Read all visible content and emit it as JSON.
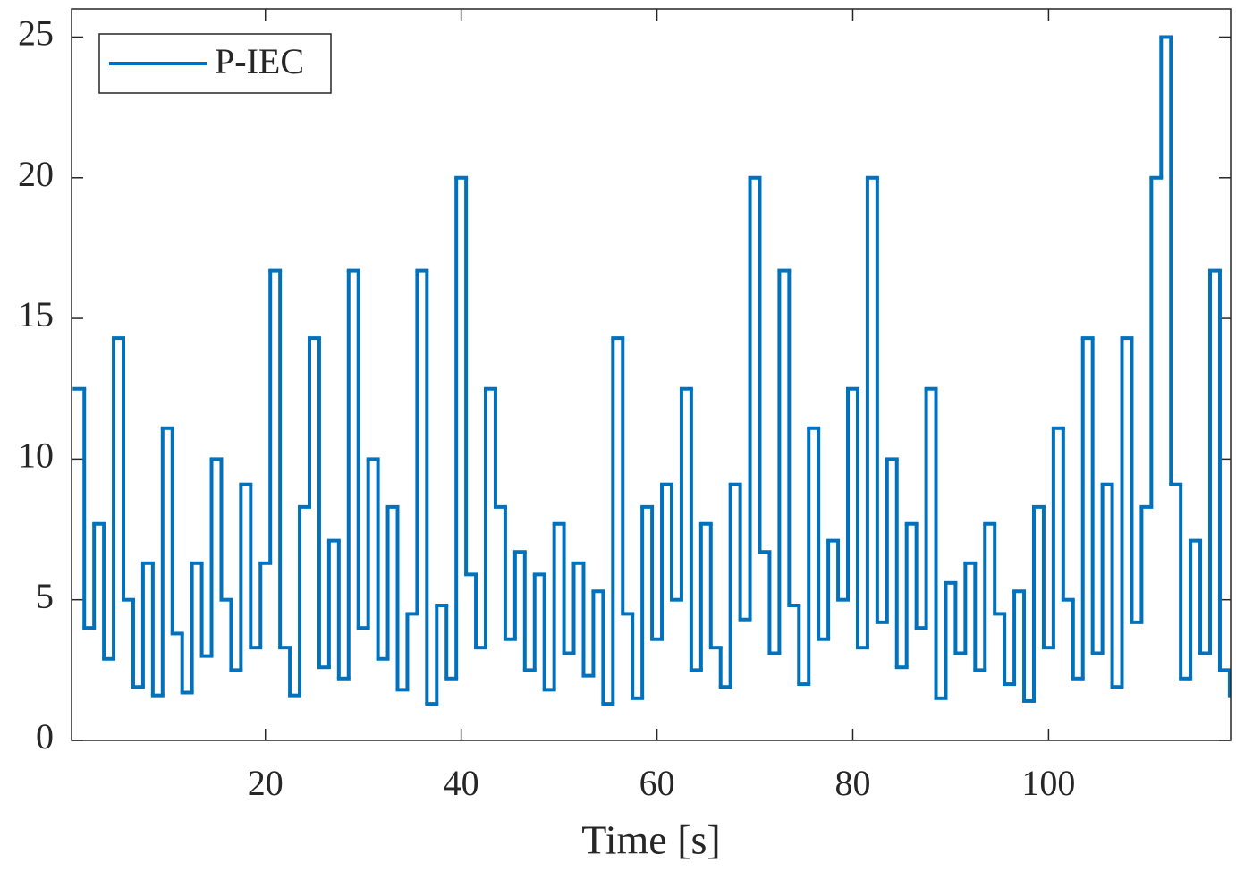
{
  "chart_data": {
    "type": "step",
    "xlabel": "Time [s]",
    "xlim": [
      0.2,
      118.6
    ],
    "ylim": [
      0,
      26
    ],
    "xticks": [
      20,
      40,
      60,
      80,
      100
    ],
    "yticks": [
      0,
      5,
      10,
      15,
      20,
      25
    ],
    "legend": "upper left",
    "box": true,
    "x": [
      0.5,
      1.5,
      2.5,
      3.5,
      4.5,
      5.5,
      6.5,
      7.5,
      8.5,
      9.5,
      10.5,
      11.5,
      12.5,
      13.5,
      14.5,
      15.5,
      16.5,
      17.5,
      18.5,
      19.5,
      20.5,
      21.5,
      22.5,
      23.5,
      24.5,
      25.5,
      26.5,
      27.5,
      28.5,
      29.5,
      30.5,
      31.5,
      32.5,
      33.5,
      34.5,
      35.5,
      36.5,
      37.5,
      38.5,
      39.5,
      40.5,
      41.5,
      42.5,
      43.5,
      44.5,
      45.5,
      46.5,
      47.5,
      48.5,
      49.5,
      50.5,
      51.5,
      52.5,
      53.5,
      54.5,
      55.5,
      56.5,
      57.5,
      58.5,
      59.5,
      60.5,
      61.5,
      62.5,
      63.5,
      64.5,
      65.5,
      66.5,
      67.5,
      68.5,
      69.5,
      70.5,
      71.5,
      72.5,
      73.5,
      74.5,
      75.5,
      76.5,
      77.5,
      78.5,
      79.5,
      80.5,
      81.5,
      82.5,
      83.5,
      84.5,
      85.5,
      86.5,
      87.5,
      88.5,
      89.5,
      90.5,
      91.5,
      92.5,
      93.5,
      94.5,
      95.5,
      96.5,
      97.5,
      98.5,
      99.5,
      100.5,
      101.5,
      102.5,
      103.5,
      104.5,
      105.5,
      106.5,
      107.5,
      108.5,
      109.5,
      110.5,
      111.5,
      112.5,
      113.5,
      114.5,
      115.5,
      116.5,
      117.5,
      118.5
    ],
    "series": [
      {
        "name": "P-IEC",
        "color": "#0072bd",
        "values": [
          12.5,
          4,
          7.7,
          2.9,
          14.3,
          5,
          1.9,
          6.3,
          1.6,
          11.1,
          3.8,
          1.7,
          6.3,
          3,
          10,
          5,
          2.5,
          9.1,
          3.3,
          6.3,
          16.7,
          3.3,
          1.6,
          8.3,
          14.3,
          2.6,
          7.1,
          2.2,
          16.7,
          4,
          10,
          2.9,
          8.3,
          1.8,
          4.5,
          16.7,
          1.3,
          4.8,
          2.2,
          20,
          5.9,
          3.3,
          12.5,
          8.3,
          3.6,
          6.7,
          2.5,
          5.9,
          1.8,
          7.7,
          3.1,
          6.3,
          2.3,
          5.3,
          1.3,
          14.3,
          4.5,
          1.5,
          8.3,
          3.6,
          9.1,
          5,
          12.5,
          2.5,
          7.7,
          3.3,
          1.9,
          9.1,
          4.3,
          20,
          6.7,
          3.1,
          16.7,
          4.8,
          2,
          11.1,
          3.6,
          7.1,
          5,
          12.5,
          3.3,
          20,
          4.2,
          10,
          2.6,
          7.7,
          4,
          12.5,
          1.5,
          5.6,
          3.1,
          6.3,
          2.5,
          7.7,
          4.5,
          2,
          5.3,
          1.4,
          8.3,
          3.3,
          11.1,
          5,
          2.2,
          14.3,
          3.1,
          9.1,
          1.9,
          14.3,
          4.2,
          8.3,
          20,
          25,
          9.1,
          2.2,
          7.1,
          3.1,
          16.7,
          2.5,
          1.6
        ]
      }
    ]
  }
}
